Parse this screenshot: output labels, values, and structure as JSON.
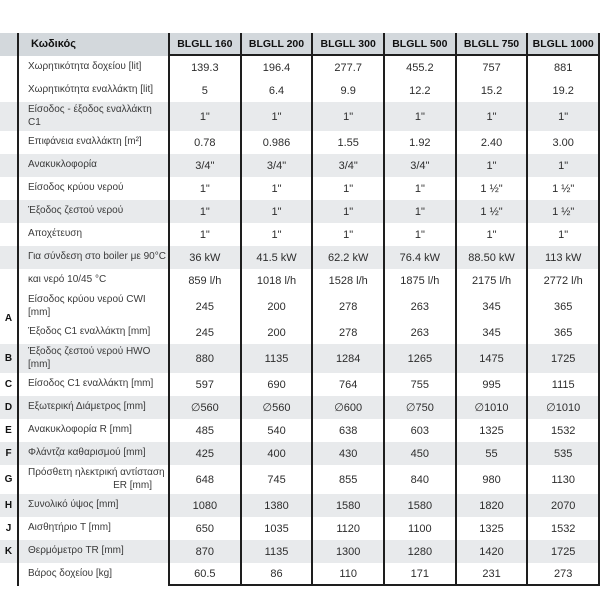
{
  "colors": {
    "header_bg": "#d3d8dc",
    "band_gray": "#e8eaec",
    "band_white": "#ffffff",
    "border": "#1e1e1e",
    "text": "#2d2d2d"
  },
  "table": {
    "header": {
      "codes_label": "Κωδικός",
      "columns": [
        "BLGLL 160",
        "BLGLL 200",
        "BLGLL 300",
        "BLGLL 500",
        "BLGLL 750",
        "BLGLL 1000"
      ]
    },
    "rows": [
      {
        "letter": "",
        "label": "Χωρητικότητα δοχείου [lit]",
        "label2": "",
        "band": "white",
        "values": [
          "139.3",
          "196.4",
          "277.7",
          "455.2",
          "757",
          "881"
        ]
      },
      {
        "letter": "",
        "label": "Χωρητικότητα εναλλάκτη [lit]",
        "label2": "",
        "band": "white",
        "values": [
          "5",
          "6.4",
          "9.9",
          "12.2",
          "15.2",
          "19.2"
        ]
      },
      {
        "letter": "",
        "label": "Είσοδος - έξοδος εναλλάκτη C1",
        "label2": "",
        "band": "gray",
        "values": [
          "1\"",
          "1\"",
          "1\"",
          "1\"",
          "1\"",
          "1\""
        ]
      },
      {
        "letter": "",
        "label": "Επιφάνεια εναλλάκτη [m²]",
        "label2": "",
        "band": "white",
        "values": [
          "0.78",
          "0.986",
          "1.55",
          "1.92",
          "2.40",
          "3.00"
        ]
      },
      {
        "letter": "",
        "label": "Ανακυκλοφορία",
        "label2": "",
        "band": "gray",
        "values": [
          "3/4\"",
          "3/4\"",
          "3/4\"",
          "3/4\"",
          "1\"",
          "1\""
        ]
      },
      {
        "letter": "",
        "label": "Είσοδος κρύου νερού",
        "label2": "",
        "band": "white",
        "values": [
          "1\"",
          "1\"",
          "1\"",
          "1\"",
          "1 ½\"",
          "1 ½\""
        ]
      },
      {
        "letter": "",
        "label": "Έξοδος ζεστού νερού",
        "label2": "",
        "band": "gray",
        "values": [
          "1\"",
          "1\"",
          "1\"",
          "1\"",
          "1 ½\"",
          "1 ½\""
        ]
      },
      {
        "letter": "",
        "label": "Αποχέτευση",
        "label2": "",
        "band": "white",
        "values": [
          "1\"",
          "1\"",
          "1\"",
          "1\"",
          "1\"",
          "1\""
        ]
      },
      {
        "letter": "",
        "label": "Για σύνδεση στο boiler με 90°C",
        "label2": "",
        "band": "gray",
        "values": [
          "36 kW",
          "41.5 kW",
          "62.2 kW",
          "76.4 kW",
          "88.50 kW",
          "113 kW"
        ]
      },
      {
        "letter": "",
        "label": "και νερό 10/45 °C",
        "label2": "",
        "band": "white",
        "values": [
          "859 l/h",
          "1018 l/h",
          "1528 l/h",
          "1875 l/h",
          "2175 l/h",
          "2772 l/h"
        ]
      },
      {
        "letter": "A",
        "letter_shift": "down",
        "label": "Είσοδος κρύου νερού CWI [mm]",
        "label2": "",
        "band": "white",
        "values": [
          "245",
          "200",
          "278",
          "263",
          "345",
          "365"
        ]
      },
      {
        "letter": "",
        "label": "Έξοδος C1 εναλλάκτη [mm]",
        "label2": "",
        "band": "white",
        "values": [
          "245",
          "200",
          "278",
          "263",
          "345",
          "365"
        ]
      },
      {
        "letter": "B",
        "label": "Έξοδος ζεστού νερού HWO [mm]",
        "label2": "",
        "band": "gray",
        "values": [
          "880",
          "1135",
          "1284",
          "1265",
          "1475",
          "1725"
        ]
      },
      {
        "letter": "C",
        "label": "Είσοδος C1 εναλλάκτη [mm]",
        "label2": "",
        "band": "white",
        "values": [
          "597",
          "690",
          "764",
          "755",
          "995",
          "1115"
        ]
      },
      {
        "letter": "D",
        "label": "Εξωτερική Διάμετρος [mm]",
        "label2": "",
        "band": "gray",
        "values": [
          "∅560",
          "∅560",
          "∅600",
          "∅750",
          "∅1010",
          "∅1010"
        ]
      },
      {
        "letter": "E",
        "label": "Ανακυκλοφορία R [mm]",
        "label2": "",
        "band": "white",
        "values": [
          "485",
          "540",
          "638",
          "603",
          "1325",
          "1532"
        ]
      },
      {
        "letter": "F",
        "label": "Φλάντζα καθαρισμού [mm]",
        "label2": "",
        "band": "gray",
        "values": [
          "425",
          "400",
          "430",
          "450",
          "55",
          "535"
        ]
      },
      {
        "letter": "G",
        "label": "Πρόσθετη ηλεκτρική αντίσταση",
        "label2": "ER [mm]",
        "band": "white",
        "values": [
          "648",
          "745",
          "855",
          "840",
          "980",
          "1130"
        ]
      },
      {
        "letter": "H",
        "label": "Συνολικό ύψος [mm]",
        "label2": "",
        "band": "gray",
        "values": [
          "1080",
          "1380",
          "1580",
          "1580",
          "1820",
          "2070"
        ]
      },
      {
        "letter": "J",
        "label": "Αισθητήριο T [mm]",
        "label2": "",
        "band": "white",
        "values": [
          "650",
          "1035",
          "1120",
          "1100",
          "1325",
          "1532"
        ]
      },
      {
        "letter": "K",
        "label": "Θερμόμετρο TR [mm]",
        "label2": "",
        "band": "gray",
        "values": [
          "870",
          "1135",
          "1300",
          "1280",
          "1420",
          "1725"
        ]
      },
      {
        "letter": "",
        "label": "Βάρος δοχείου [kg]",
        "label2": "",
        "band": "white",
        "values": [
          "60.5",
          "86",
          "110",
          "171",
          "231",
          "273"
        ]
      }
    ]
  }
}
